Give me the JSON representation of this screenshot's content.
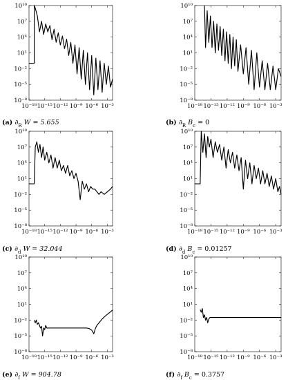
{
  "chart_data": [
    {
      "type": "line",
      "caption": {
        "tag": "(a)",
        "text": "∂_R W = 5.655"
      },
      "x_scale": "log",
      "y_scale": "log",
      "xlim": [
        1e-18,
        0.01
      ],
      "ylim": [
        1e-08,
        10000000000.0
      ],
      "x_ticks": [
        "10⁻¹⁸",
        "10⁻¹⁵",
        "10⁻¹²",
        "10⁻⁹",
        "10⁻⁶",
        "10⁻³"
      ],
      "y_ticks": [
        "10¹⁰",
        "10⁷",
        "10⁴",
        "10¹",
        "10⁻²",
        "10⁻⁵",
        "10⁻⁸"
      ],
      "series": [
        {
          "x_log10": [
            -18,
            -17,
            -17,
            -16.8,
            -16.4,
            -16,
            -15.6,
            -15.2,
            -14.8,
            -14.4,
            -14,
            -13.6,
            -13.2,
            -12.8,
            -12.4,
            -12,
            -11.6,
            -11.2,
            -10.8,
            -10.4,
            -10,
            -9.6,
            -9.2,
            -8.8,
            -8.4,
            -8,
            -7.6,
            -7.2,
            -6.8,
            -6.4,
            -6,
            -5.6,
            -5.2,
            -4.8,
            -4.4,
            -4,
            -3.6,
            -3.2,
            -2.8,
            -2.4,
            -2
          ],
          "y_log10": [
            -1,
            -1,
            10,
            9.5,
            8,
            5,
            7,
            4.5,
            6.5,
            5,
            6.2,
            3.5,
            5.5,
            3,
            4.8,
            2.5,
            4.2,
            1.8,
            3.6,
            0.5,
            3,
            -1,
            2.5,
            -3,
            2,
            -4,
            1.5,
            -5,
            1,
            -6,
            0.5,
            -7,
            0,
            -6,
            -0.5,
            -6.5,
            -1,
            -5,
            -1.5,
            -5.5,
            -4
          ]
        }
      ]
    },
    {
      "type": "line",
      "caption": {
        "tag": "(b)",
        "text": "∂_R B_c = 0"
      },
      "x_scale": "log",
      "y_scale": "log",
      "xlim": [
        1e-18,
        0.01
      ],
      "ylim": [
        1e-08,
        10000000000.0
      ],
      "x_ticks": [
        "10⁻¹⁸",
        "10⁻¹⁵",
        "10⁻¹²",
        "10⁻⁹",
        "10⁻⁶",
        "10⁻³"
      ],
      "y_ticks": [
        "10¹⁰",
        "10⁷",
        "10⁴",
        "10¹",
        "10⁻²",
        "10⁻⁵",
        "10⁻⁸"
      ],
      "series": [
        {
          "x_log10": [
            -16.2,
            -16,
            -15.7,
            -15.4,
            -15.1,
            -14.8,
            -14.5,
            -14.2,
            -13.9,
            -13.6,
            -13.3,
            -13,
            -12.7,
            -12.4,
            -12.1,
            -11.8,
            -11.5,
            -11.2,
            -10.9,
            -10.6,
            -10.3,
            -10,
            -9.5,
            -9,
            -8.5,
            -8,
            -7.5,
            -7,
            -6.5,
            -6,
            -5.5,
            -5,
            -4.5,
            -4,
            -3.5,
            -3,
            -2.5,
            -2
          ],
          "y_log10": [
            10,
            2,
            9,
            3,
            8,
            2,
            7,
            1,
            6.5,
            1.5,
            6,
            0.5,
            5.5,
            -0.5,
            5,
            -1,
            4.5,
            -2,
            4,
            -1.5,
            3.5,
            -2.5,
            2.5,
            -3,
            2,
            -5,
            1.5,
            -6,
            1,
            -5.5,
            -0.5,
            -6,
            -1,
            -6,
            -1.5,
            -6,
            -2,
            -3.5
          ]
        }
      ]
    },
    {
      "type": "line",
      "caption": {
        "tag": "(c)",
        "text": "∂_d W = 32.044"
      },
      "x_scale": "log",
      "y_scale": "log",
      "xlim": [
        1e-18,
        0.01
      ],
      "ylim": [
        1e-08,
        10000000000.0
      ],
      "x_ticks": [
        "10⁻¹⁸",
        "10⁻¹⁵",
        "10⁻¹²",
        "10⁻⁹",
        "10⁻⁶",
        "10⁻³"
      ],
      "y_ticks": [
        "10¹⁰",
        "10⁷",
        "10⁴",
        "10¹",
        "10⁻²",
        "10⁻⁵",
        "10⁻⁸"
      ],
      "series": [
        {
          "x_log10": [
            -18,
            -17,
            -16.8,
            -16.5,
            -16.2,
            -15.9,
            -15.6,
            -15.3,
            -15,
            -14.6,
            -14.2,
            -13.8,
            -13.4,
            -13,
            -12.6,
            -12.2,
            -11.8,
            -11.4,
            -11,
            -10.6,
            -10.2,
            -9.8,
            -9.4,
            -9,
            -8.6,
            -8.2,
            -7.8,
            -7.4,
            -7,
            -6.6,
            -6.2,
            -5.8,
            -5.4,
            -5,
            -4.6,
            -4.2,
            -3.6,
            -3,
            -2.4,
            -2
          ],
          "y_log10": [
            0,
            0,
            7,
            8,
            6,
            7.5,
            5,
            7,
            4.5,
            6,
            4,
            5.5,
            3,
            5,
            3,
            4.5,
            2.5,
            3.5,
            2,
            3.5,
            1.5,
            2.5,
            1,
            2,
            0.5,
            -3,
            0.5,
            -1,
            0,
            -1.5,
            -0.5,
            -1,
            -1,
            -1.5,
            -2,
            -1.5,
            -2,
            -1.5,
            -1,
            -0.5
          ]
        }
      ]
    },
    {
      "type": "line",
      "caption": {
        "tag": "(d)",
        "text": "∂_d B_c = 0.01257"
      },
      "x_scale": "log",
      "y_scale": "log",
      "xlim": [
        1e-18,
        0.01
      ],
      "ylim": [
        1e-08,
        10000000000.0
      ],
      "x_ticks": [
        "10⁻¹⁸",
        "10⁻¹⁵",
        "10⁻¹²",
        "10⁻⁹",
        "10⁻⁶",
        "10⁻³"
      ],
      "y_ticks": [
        "10¹⁰",
        "10⁷",
        "10⁴",
        "10¹",
        "10⁻²",
        "10⁻⁵",
        "10⁻⁸"
      ],
      "series": [
        {
          "x_log10": [
            -18,
            -17,
            -16.8,
            -16.5,
            -16.2,
            -15.9,
            -15.6,
            -15.3,
            -15,
            -14.6,
            -14.2,
            -13.8,
            -13.4,
            -13,
            -12.6,
            -12.2,
            -11.8,
            -11.4,
            -11,
            -10.6,
            -10.2,
            -9.8,
            -9.4,
            -9,
            -8.6,
            -8.2,
            -7.8,
            -7.4,
            -7,
            -6.6,
            -6.2,
            -5.8,
            -5.4,
            -5,
            -4.6,
            -4.2,
            -3.8,
            -3.4,
            -3,
            -2.6,
            -2.3,
            -2
          ],
          "y_log10": [
            0,
            0,
            10,
            6,
            9.5,
            5,
            9,
            7,
            8.5,
            5,
            8,
            6,
            7.5,
            4.5,
            7,
            3,
            6.5,
            4,
            6,
            3,
            5.5,
            2.5,
            5,
            -1,
            4.5,
            1,
            4,
            0,
            3.5,
            1,
            3,
            0,
            2.5,
            0,
            2,
            -0.5,
            1.5,
            -1,
            1,
            -1.5,
            -0.5,
            -2
          ]
        }
      ]
    },
    {
      "type": "line",
      "caption": {
        "tag": "(e)",
        "text": "∂_f W = 904.78"
      },
      "x_scale": "log",
      "y_scale": "log",
      "xlim": [
        1e-18,
        0.01
      ],
      "ylim": [
        1e-08,
        10000000000.0
      ],
      "x_ticks": [
        "10⁻¹⁸",
        "10⁻¹⁵",
        "10⁻¹²",
        "10⁻⁹",
        "10⁻⁶",
        "10⁻³"
      ],
      "y_ticks": [
        "10¹⁰",
        "10⁷",
        "10⁴",
        "10¹",
        "10⁻²",
        "10⁻⁵",
        "10⁻⁸"
      ],
      "series": [
        {
          "x_log10": [
            -17,
            -16.8,
            -16.6,
            -16.4,
            -16.2,
            -16,
            -15.8,
            -15.6,
            -15.4,
            -15.2,
            -15,
            -14.8,
            -14.6,
            -14.2,
            -13.5,
            -12,
            -10,
            -8,
            -7,
            -6.5,
            -6,
            -5.8,
            -5.6,
            -5.5,
            -5.3,
            -5,
            -4.5,
            -4,
            -3.5,
            -3,
            -2.5,
            -2
          ],
          "y_log10": [
            -2,
            -2.5,
            -2,
            -2.8,
            -2.5,
            -3,
            -3.5,
            -3.2,
            -5,
            -3.5,
            -3.8,
            -3,
            -3.5,
            -3.5,
            -3.5,
            -3.5,
            -3.5,
            -3.5,
            -3.5,
            -3.6,
            -3.9,
            -4.2,
            -4.6,
            -4.3,
            -3.6,
            -3,
            -2.4,
            -1.8,
            -1.3,
            -0.9,
            -0.5,
            -0.1
          ]
        }
      ]
    },
    {
      "type": "line",
      "caption": {
        "tag": "(f)",
        "text": "∂_f B_c = 0.3757"
      },
      "x_scale": "log",
      "y_scale": "log",
      "xlim": [
        1e-18,
        0.01
      ],
      "ylim": [
        1e-08,
        10000000000.0
      ],
      "x_ticks": [
        "10⁻¹⁸",
        "10⁻¹⁵",
        "10⁻¹²",
        "10⁻⁹",
        "10⁻⁶",
        "10⁻³"
      ],
      "y_ticks": [
        "10¹⁰",
        "10⁷",
        "10⁴",
        "10¹",
        "10⁻²",
        "10⁻⁵",
        "10⁻⁸"
      ],
      "series": [
        {
          "x_log10": [
            -17,
            -16.8,
            -16.6,
            -16.4,
            -16.2,
            -16,
            -15.8,
            -15.6,
            -15.4,
            -15.2,
            -15,
            -14.5,
            -13,
            -10,
            -7,
            -4,
            -2
          ],
          "y_log10": [
            0,
            -0.5,
            0.2,
            -1.5,
            -1,
            -2,
            -1.5,
            -2.5,
            -1.8,
            -1.5,
            -1.5,
            -1.5,
            -1.5,
            -1.5,
            -1.5,
            -1.5,
            -1.5
          ]
        }
      ]
    }
  ]
}
